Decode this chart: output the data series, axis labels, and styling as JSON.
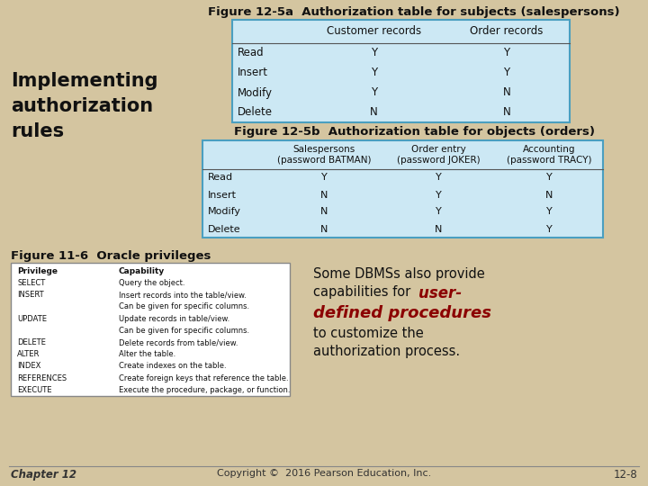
{
  "bg_color": "#d4c5a0",
  "title1": "Figure 12-5a  Authorization table for subjects (salespersons)",
  "title2": "Figure 12-5b  Authorization table for objects (orders)",
  "title3": "Figure 11-6  Oracle privileges",
  "left_text": "Implementing\nauthorization\nrules",
  "table1_header": [
    "",
    "Customer records",
    "Order records"
  ],
  "table1_rows": [
    [
      "Read",
      "Y",
      "Y"
    ],
    [
      "Insert",
      "Y",
      "Y"
    ],
    [
      "Modify",
      "Y",
      "N"
    ],
    [
      "Delete",
      "N",
      "N"
    ]
  ],
  "table2_header": [
    "",
    "Salespersons\n(password BATMAN)",
    "Order entry\n(password JOKER)",
    "Accounting\n(password TRACY)"
  ],
  "table2_rows": [
    [
      "Read",
      "Y",
      "Y",
      "Y"
    ],
    [
      "Insert",
      "N",
      "Y",
      "N"
    ],
    [
      "Modify",
      "N",
      "Y",
      "Y"
    ],
    [
      "Delete",
      "N",
      "N",
      "Y"
    ]
  ],
  "footer_left": "Chapter 12",
  "footer_center": "Copyright ©  2016 Pearson Education, Inc.",
  "footer_right": "12-8",
  "table_bg": "#cce8f4",
  "table_border": "#4a9fc0",
  "oracle_box_bg": "#ffffff",
  "oracle_box_border": "#888888",
  "dark_red": "#8b0000"
}
